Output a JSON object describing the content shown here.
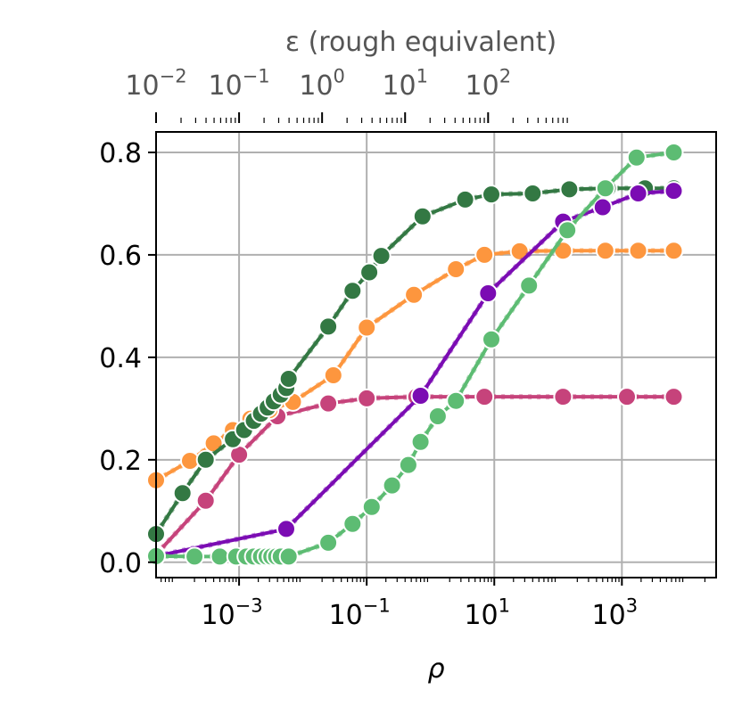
{
  "chart_data": {
    "type": "line",
    "xlabel": "ρ",
    "top_axis_label": "ε (rough equivalent)",
    "x_scale": "log",
    "xlim": [
      5e-05,
      30000
    ],
    "ylim": [
      -0.03,
      0.84
    ],
    "grid": true,
    "x_ticks": [
      {
        "value": 0.001,
        "base": "10",
        "exp": "−3"
      },
      {
        "value": 0.1,
        "base": "10",
        "exp": "−1"
      },
      {
        "value": 10,
        "base": "10",
        "exp": "1"
      },
      {
        "value": 1000,
        "base": "10",
        "exp": "3"
      }
    ],
    "top_ticks": [
      {
        "value": 5e-05,
        "base": "10",
        "exp": "−2"
      },
      {
        "value": 0.001,
        "base": "10",
        "exp": "−1"
      },
      {
        "value": 0.02,
        "base": "10",
        "exp": "0"
      },
      {
        "value": 0.4,
        "base": "10",
        "exp": "1"
      },
      {
        "value": 8,
        "base": "10",
        "exp": "2"
      }
    ],
    "y_ticks": [
      {
        "value": 0.0,
        "label": "0.0"
      },
      {
        "value": 0.2,
        "label": "0.2"
      },
      {
        "value": 0.4,
        "label": "0.4"
      },
      {
        "value": 0.6,
        "label": "0.6"
      },
      {
        "value": 0.8,
        "label": "0.8"
      }
    ],
    "series": [
      {
        "color": "#c6437b",
        "points": [
          [
            5e-05,
            0.015
          ],
          [
            0.0003,
            0.12
          ],
          [
            0.001,
            0.21
          ],
          [
            0.004,
            0.285
          ],
          [
            0.025,
            0.31
          ],
          [
            0.1,
            0.32
          ],
          [
            0.6,
            0.323
          ],
          [
            7,
            0.323
          ],
          [
            120,
            0.323
          ],
          [
            1200,
            0.323
          ],
          [
            6500,
            0.323
          ]
        ]
      },
      {
        "color": "#fd963e",
        "points": [
          [
            5e-05,
            0.16
          ],
          [
            0.00017,
            0.198
          ],
          [
            0.0004,
            0.232
          ],
          [
            0.0008,
            0.258
          ],
          [
            0.0015,
            0.28
          ],
          [
            0.003,
            0.297
          ],
          [
            0.007,
            0.313
          ],
          [
            0.03,
            0.365
          ],
          [
            0.1,
            0.458
          ],
          [
            0.55,
            0.522
          ],
          [
            2.5,
            0.572
          ],
          [
            7,
            0.6
          ],
          [
            25,
            0.607
          ],
          [
            120,
            0.608
          ],
          [
            550,
            0.608
          ],
          [
            1800,
            0.608
          ],
          [
            6500,
            0.608
          ]
        ]
      },
      {
        "color": "#337843",
        "points": [
          [
            5e-05,
            0.055
          ],
          [
            0.00013,
            0.135
          ],
          [
            0.0003,
            0.2
          ],
          [
            0.0008,
            0.24
          ],
          [
            0.0012,
            0.258
          ],
          [
            0.0017,
            0.276
          ],
          [
            0.0022,
            0.29
          ],
          [
            0.0028,
            0.302
          ],
          [
            0.0035,
            0.314
          ],
          [
            0.0045,
            0.327
          ],
          [
            0.0055,
            0.34
          ],
          [
            0.006,
            0.358
          ],
          [
            0.025,
            0.46
          ],
          [
            0.06,
            0.53
          ],
          [
            0.11,
            0.566
          ],
          [
            0.17,
            0.598
          ],
          [
            0.75,
            0.675
          ],
          [
            3.5,
            0.708
          ],
          [
            9,
            0.718
          ],
          [
            40,
            0.72
          ],
          [
            150,
            0.728
          ],
          [
            600,
            0.73
          ],
          [
            2300,
            0.73
          ],
          [
            6500,
            0.73
          ]
        ]
      },
      {
        "color": "#7b0cb3",
        "points": [
          [
            5e-05,
            0.012
          ],
          [
            0.0055,
            0.065
          ],
          [
            0.7,
            0.325
          ],
          [
            8,
            0.525
          ],
          [
            120,
            0.665
          ],
          [
            500,
            0.693
          ],
          [
            1800,
            0.72
          ],
          [
            6500,
            0.725
          ]
        ]
      },
      {
        "color": "#5dbc73",
        "points": [
          [
            5e-05,
            0.012
          ],
          [
            0.0002,
            0.011
          ],
          [
            0.0005,
            0.011
          ],
          [
            0.0009,
            0.011
          ],
          [
            0.0013,
            0.011
          ],
          [
            0.0017,
            0.011
          ],
          [
            0.0022,
            0.011
          ],
          [
            0.0027,
            0.011
          ],
          [
            0.0032,
            0.011
          ],
          [
            0.0038,
            0.011
          ],
          [
            0.0045,
            0.011
          ],
          [
            0.006,
            0.011
          ],
          [
            0.025,
            0.038
          ],
          [
            0.06,
            0.075
          ],
          [
            0.12,
            0.108
          ],
          [
            0.25,
            0.15
          ],
          [
            0.45,
            0.19
          ],
          [
            0.7,
            0.235
          ],
          [
            1.3,
            0.285
          ],
          [
            2.5,
            0.315
          ],
          [
            9,
            0.435
          ],
          [
            35,
            0.54
          ],
          [
            140,
            0.648
          ],
          [
            550,
            0.73
          ],
          [
            1700,
            0.79
          ],
          [
            6500,
            0.8
          ]
        ]
      }
    ]
  }
}
